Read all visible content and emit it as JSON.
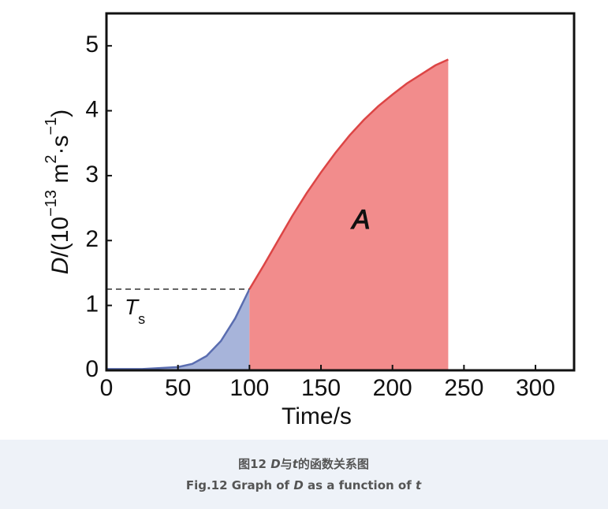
{
  "chart_data": {
    "type": "area",
    "ylabel_parts": [
      {
        "text": "D",
        "style": "italic"
      },
      {
        "text": "/(10"
      },
      {
        "text": "−13",
        "style": "sup"
      },
      {
        "text": " m"
      },
      {
        "text": "2",
        "style": "sup"
      },
      {
        "text": "·s"
      },
      {
        "text": "−1",
        "style": "sup"
      },
      {
        "text": ")"
      }
    ],
    "xlabel": "Time/s",
    "xlim": [
      0,
      327
    ],
    "ylim": [
      0,
      5.5
    ],
    "xticks": [
      0,
      50,
      100,
      150,
      200,
      250,
      300
    ],
    "yticks": [
      0,
      1,
      2,
      3,
      4,
      5
    ],
    "series": [
      {
        "color": "#5a6db0",
        "fill": "#a7b4da",
        "x": [
          0,
          25,
          50,
          60,
          70,
          80,
          90,
          100
        ],
        "values": [
          0.02,
          0.02,
          0.05,
          0.1,
          0.22,
          0.45,
          0.8,
          1.25
        ]
      },
      {
        "color": "#dc4545",
        "fill": "#f28c8c",
        "x": [
          100,
          110,
          120,
          130,
          140,
          150,
          160,
          170,
          180,
          190,
          200,
          210,
          220,
          230,
          239
        ],
        "values": [
          1.25,
          1.62,
          2.0,
          2.38,
          2.73,
          3.05,
          3.35,
          3.62,
          3.86,
          4.07,
          4.25,
          4.42,
          4.56,
          4.7,
          4.79
        ]
      }
    ],
    "reference_line": {
      "y": 1.25,
      "x": [
        0,
        100
      ]
    },
    "annotations": [
      {
        "parts": [
          "T",
          "s"
        ]
      },
      {
        "parts": [
          "A"
        ]
      }
    ]
  },
  "caption": {
    "line1": [
      {
        "text": "图12 "
      },
      {
        "text": "D",
        "style": "italic"
      },
      {
        "text": "与"
      },
      {
        "text": "t",
        "style": "italic"
      },
      {
        "text": "的函数关系图"
      }
    ],
    "line2": [
      {
        "text": "Fig.12 Graph of "
      },
      {
        "text": "D",
        "style": "italic"
      },
      {
        "text": " as a function of "
      },
      {
        "text": "t",
        "style": "italic"
      }
    ]
  }
}
